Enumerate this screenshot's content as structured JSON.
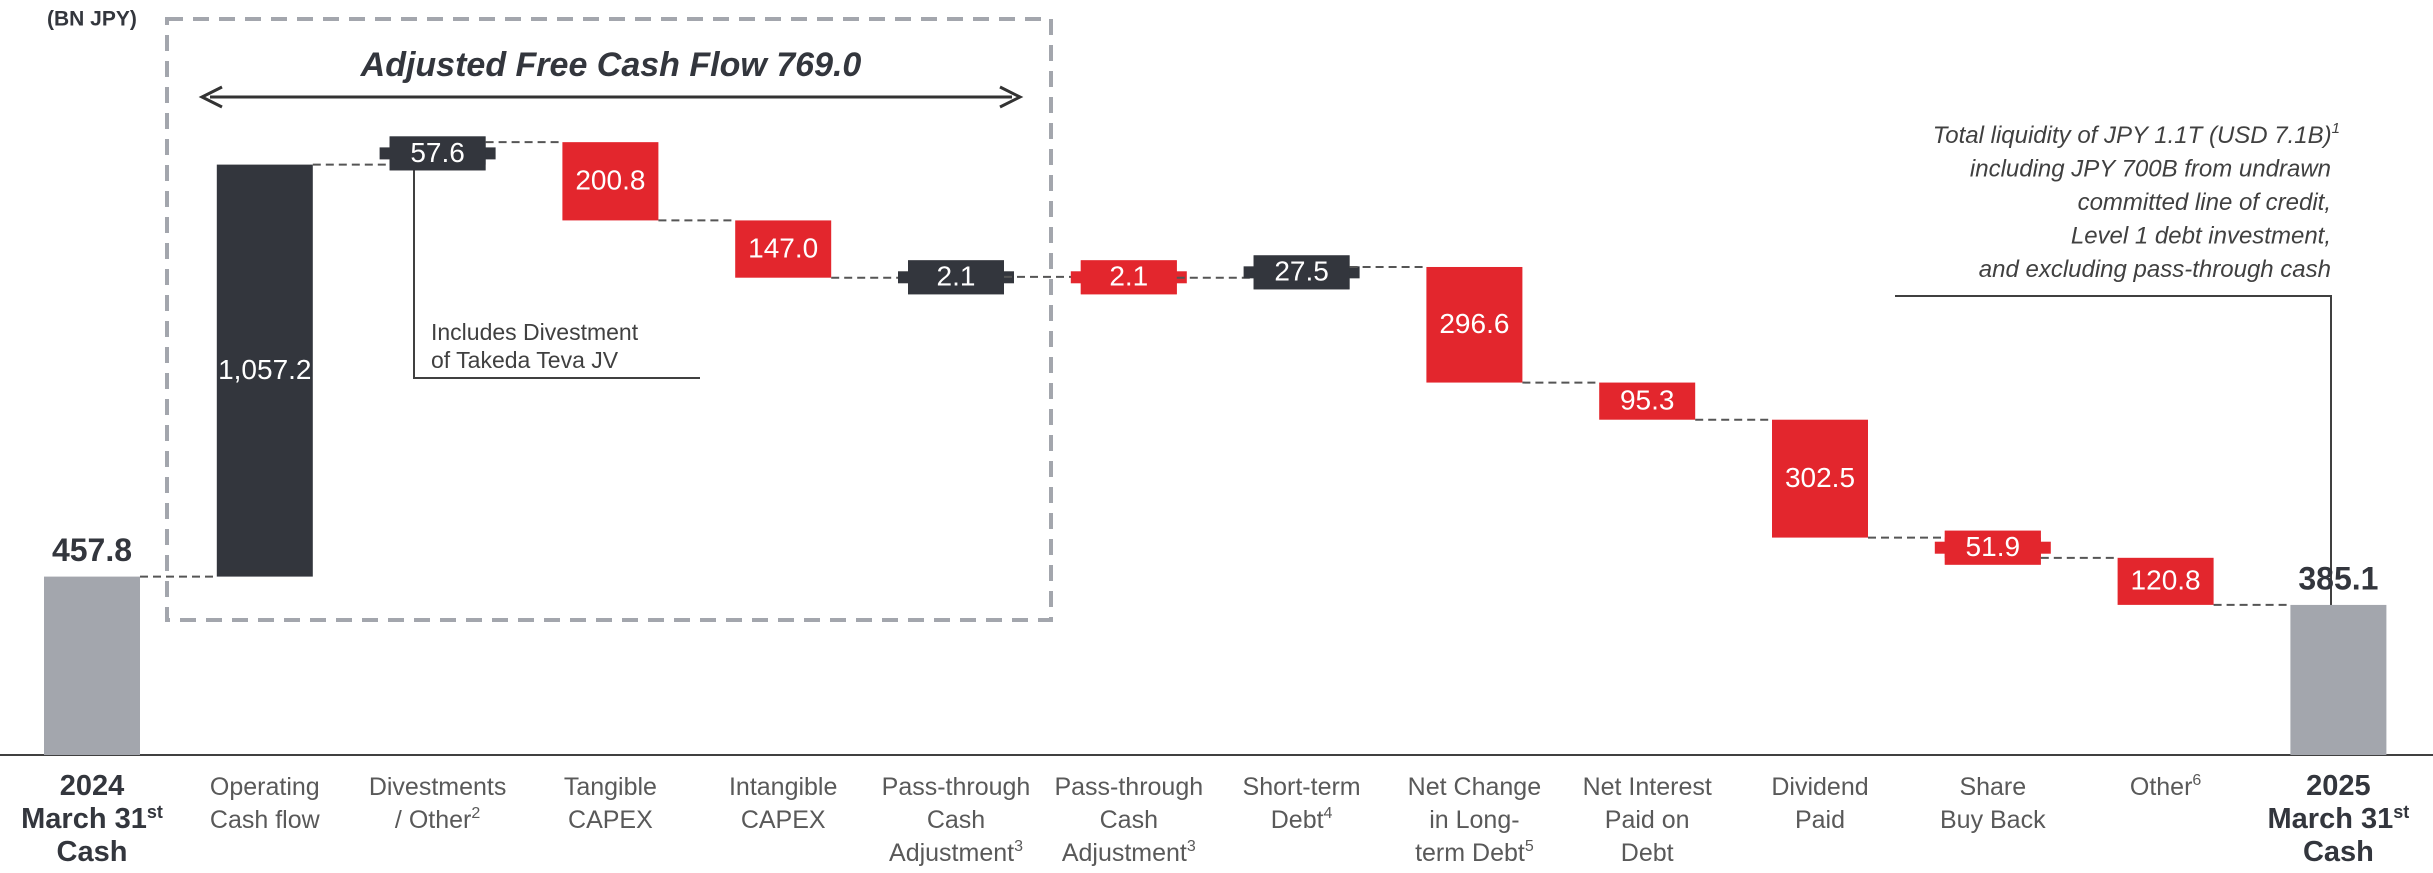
{
  "chart_data": {
    "type": "waterfall",
    "unit_label": "(BN JPY)",
    "title": "Adjusted Free Cash Flow 769.0",
    "categories": [
      [
        [
          "2024"
        ],
        [
          "March 31",
          "st"
        ],
        [
          "Cash"
        ]
      ],
      [
        [
          "Operating"
        ],
        [
          "Cash flow"
        ]
      ],
      [
        [
          "Divestments"
        ],
        [
          "/ Other",
          "2"
        ]
      ],
      [
        [
          "Tangible"
        ],
        [
          "CAPEX"
        ]
      ],
      [
        [
          "Intangible"
        ],
        [
          "CAPEX"
        ]
      ],
      [
        [
          "Pass-through"
        ],
        [
          "Cash"
        ],
        [
          "Adjustment",
          "3"
        ]
      ],
      [
        [
          "Pass-through"
        ],
        [
          "Cash"
        ],
        [
          "Adjustment",
          "3"
        ]
      ],
      [
        [
          "Short-term"
        ],
        [
          "Debt",
          "4"
        ]
      ],
      [
        [
          "Net Change"
        ],
        [
          "in Long-"
        ],
        [
          "term Debt",
          "5"
        ]
      ],
      [
        [
          "Net Interest"
        ],
        [
          "Paid on"
        ],
        [
          "Debt"
        ]
      ],
      [
        [
          "Dividend"
        ],
        [
          "Paid"
        ]
      ],
      [
        [
          "Share"
        ],
        [
          "Buy Back"
        ]
      ],
      [
        [
          "Other",
          "6"
        ]
      ],
      [
        [
          "2025"
        ],
        [
          "March 31",
          "st"
        ],
        [
          "Cash"
        ]
      ]
    ],
    "kinds": [
      "total",
      "delta",
      "delta",
      "delta",
      "delta",
      "delta",
      "delta",
      "delta",
      "delta",
      "delta",
      "delta",
      "delta",
      "delta",
      "total"
    ],
    "values": [
      457.8,
      1057.2,
      57.6,
      -200.8,
      -147.0,
      2.1,
      -2.1,
      27.5,
      -296.6,
      -95.3,
      -302.5,
      -51.9,
      -120.8,
      385.1
    ],
    "value_labels": [
      "457.8",
      "1,057.2",
      "57.6",
      "200.8",
      "147.0",
      "2.1",
      "2.1",
      "27.5",
      "296.6",
      "95.3",
      "302.5",
      "51.9",
      "120.8",
      "385.1"
    ],
    "colors": [
      "#a3a6ad",
      "#33363d",
      "#33363d",
      "#e3262d",
      "#e3262d",
      "#33363d",
      "#e3262d",
      "#33363d",
      "#e3262d",
      "#e3262d",
      "#e3262d",
      "#e3262d",
      "#e3262d",
      "#a3a6ad"
    ],
    "ylim": [
      0,
      1650
    ],
    "annotation": [
      "Includes Divestment",
      "of Takeda Teva JV"
    ],
    "note": [
      "Total liquidity of JPY 1.1T (USD 7.1B)",
      "including JPY 700B from undrawn",
      "committed line of credit,",
      "Level 1 debt investment,",
      "and excluding pass-through cash"
    ],
    "note_sup": "1"
  }
}
